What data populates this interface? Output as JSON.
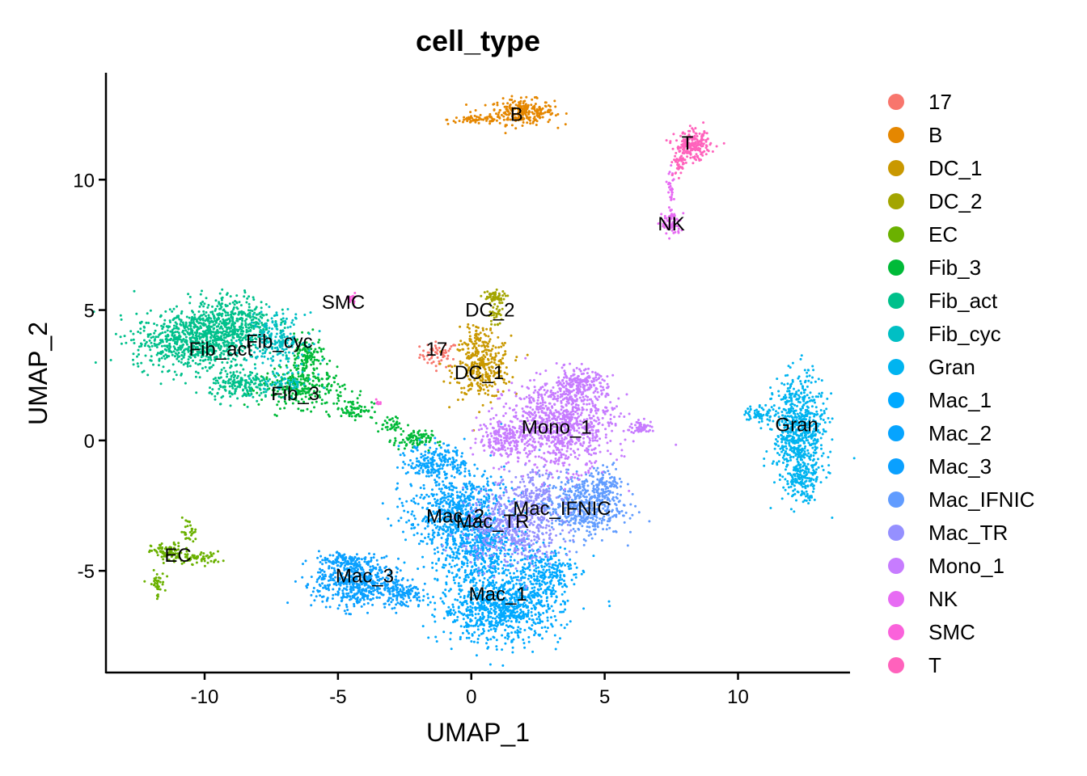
{
  "chart_data": {
    "type": "scatter",
    "title": "cell_type",
    "xlabel": "UMAP_1",
    "ylabel": "UMAP_2",
    "xlim": [
      -13.7,
      14.2
    ],
    "ylim": [
      -8.9,
      14.1
    ],
    "x_ticks": [
      -10,
      -5,
      0,
      5,
      10
    ],
    "x_tick_labels": [
      "-10",
      "-5",
      "0",
      "5",
      "10"
    ],
    "y_ticks": [
      -5,
      0,
      5,
      10
    ],
    "y_tick_labels": [
      "-5",
      "0",
      "5",
      "10"
    ],
    "grid": false,
    "legend_placement": "right",
    "series": [
      {
        "name": "17",
        "color": "#F8766D",
        "label_pos": [
          -1.3,
          3.5
        ],
        "blobs": [
          [
            -1.2,
            3.3,
            0.6,
            0.4,
            60
          ]
        ]
      },
      {
        "name": "B",
        "color": "#E58700",
        "label_pos": [
          1.7,
          12.5
        ],
        "blobs": [
          [
            1.9,
            12.6,
            1.0,
            0.4,
            260
          ],
          [
            0.2,
            12.3,
            0.9,
            0.15,
            60
          ]
        ]
      },
      {
        "name": "DC_1",
        "color": "#C99800",
        "label_pos": [
          0.3,
          2.6
        ],
        "blobs": [
          [
            0.4,
            2.8,
            0.9,
            1.0,
            320
          ],
          [
            0.2,
            4.1,
            0.4,
            0.4,
            40
          ]
        ]
      },
      {
        "name": "DC_2",
        "color": "#A3A500",
        "label_pos": [
          0.7,
          5.0
        ],
        "blobs": [
          [
            0.8,
            5.5,
            0.4,
            0.2,
            50
          ],
          [
            0.9,
            4.8,
            0.2,
            0.4,
            30
          ]
        ]
      },
      {
        "name": "EC",
        "color": "#6BB100",
        "label_pos": [
          -11.0,
          -4.4
        ],
        "blobs": [
          [
            -11.4,
            -4.3,
            0.5,
            0.3,
            80
          ],
          [
            -10.2,
            -4.5,
            0.7,
            0.2,
            60
          ],
          [
            -11.8,
            -5.5,
            0.25,
            0.4,
            40
          ],
          [
            -10.6,
            -3.5,
            0.25,
            0.4,
            30
          ]
        ]
      },
      {
        "name": "Fib_3",
        "color": "#00BA38",
        "label_pos": [
          -6.6,
          1.8
        ],
        "blobs": [
          [
            -6.3,
            2.0,
            1.3,
            0.6,
            260
          ],
          [
            -6.2,
            3.2,
            0.5,
            0.6,
            120
          ],
          [
            -4.4,
            1.2,
            0.6,
            0.3,
            70
          ],
          [
            -2.2,
            0.0,
            0.6,
            0.3,
            90
          ],
          [
            -3.0,
            0.6,
            0.5,
            0.3,
            40
          ]
        ]
      },
      {
        "name": "Fib_act",
        "color": "#00C08B",
        "label_pos": [
          -9.4,
          3.5
        ],
        "blobs": [
          [
            -10.5,
            3.8,
            1.8,
            0.9,
            700
          ],
          [
            -9.0,
            4.6,
            1.3,
            0.8,
            400
          ],
          [
            -8.6,
            2.1,
            1.0,
            0.5,
            200
          ]
        ]
      },
      {
        "name": "Fib_cyc",
        "color": "#00BFC4",
        "label_pos": [
          -7.2,
          3.8
        ],
        "blobs": [
          [
            -7.3,
            3.9,
            0.9,
            0.8,
            200
          ],
          [
            -7.0,
            2.2,
            0.9,
            0.4,
            60
          ]
        ]
      },
      {
        "name": "Gran",
        "color": "#00B4F0",
        "label_pos": [
          12.2,
          0.6
        ],
        "blobs": [
          [
            12.3,
            0.3,
            0.8,
            1.8,
            700
          ],
          [
            10.8,
            1.0,
            0.5,
            0.3,
            60
          ],
          [
            12.4,
            -1.5,
            0.5,
            0.6,
            100
          ]
        ]
      },
      {
        "name": "Mac_1",
        "color": "#00A9FF",
        "label_pos": [
          1.0,
          -5.9
        ],
        "blobs": [
          [
            1.1,
            -6.4,
            1.9,
            1.1,
            900
          ],
          [
            0.3,
            -4.0,
            1.5,
            1.2,
            500
          ],
          [
            2.8,
            -5.0,
            0.9,
            0.8,
            200
          ]
        ]
      },
      {
        "name": "Mac_2",
        "color": "#06A4FF",
        "label_pos": [
          -0.6,
          -2.9
        ],
        "blobs": [
          [
            -0.6,
            -2.7,
            1.5,
            1.3,
            600
          ],
          [
            -1.3,
            -0.8,
            0.9,
            0.6,
            200
          ]
        ]
      },
      {
        "name": "Mac_3",
        "color": "#0AA0FF",
        "label_pos": [
          -4.0,
          -5.2
        ],
        "blobs": [
          [
            -4.3,
            -5.5,
            1.3,
            0.8,
            500
          ],
          [
            -4.8,
            -4.6,
            0.8,
            0.3,
            100
          ],
          [
            -2.6,
            -5.8,
            0.6,
            0.5,
            120
          ]
        ]
      },
      {
        "name": "Mac_IFNIC",
        "color": "#619CFF",
        "label_pos": [
          3.4,
          -2.6
        ],
        "blobs": [
          [
            4.1,
            -2.5,
            1.3,
            1.0,
            500
          ],
          [
            5.1,
            -1.6,
            0.5,
            0.5,
            80
          ]
        ]
      },
      {
        "name": "Mac_TR",
        "color": "#9590FF",
        "label_pos": [
          0.8,
          -3.1
        ],
        "blobs": [
          [
            1.5,
            -3.4,
            1.5,
            1.2,
            500
          ],
          [
            2.3,
            -2.0,
            0.9,
            0.7,
            150
          ]
        ]
      },
      {
        "name": "Mono_1",
        "color": "#C77CFF",
        "label_pos": [
          3.2,
          0.5
        ],
        "blobs": [
          [
            3.3,
            0.6,
            1.7,
            1.4,
            900
          ],
          [
            4.0,
            2.1,
            0.9,
            0.5,
            200
          ],
          [
            1.2,
            0.1,
            0.8,
            0.6,
            180
          ],
          [
            6.4,
            0.5,
            0.4,
            0.2,
            60
          ]
        ]
      },
      {
        "name": "NK",
        "color": "#E76BF3",
        "label_pos": [
          7.5,
          8.3
        ],
        "blobs": [
          [
            7.5,
            8.3,
            0.3,
            0.4,
            80
          ],
          [
            7.5,
            9.6,
            0.1,
            0.6,
            30
          ]
        ]
      },
      {
        "name": "SMC",
        "color": "#FA62DB",
        "label_pos": [
          -4.8,
          5.3
        ],
        "blobs": [
          [
            -4.5,
            5.4,
            0.12,
            0.2,
            20
          ],
          [
            -3.5,
            1.5,
            0.12,
            0.1,
            8
          ]
        ]
      },
      {
        "name": "T",
        "color": "#FF62BC",
        "label_pos": [
          8.1,
          11.4
        ],
        "blobs": [
          [
            8.3,
            11.3,
            0.55,
            0.45,
            220
          ],
          [
            7.8,
            10.6,
            0.2,
            0.4,
            40
          ]
        ]
      }
    ]
  }
}
